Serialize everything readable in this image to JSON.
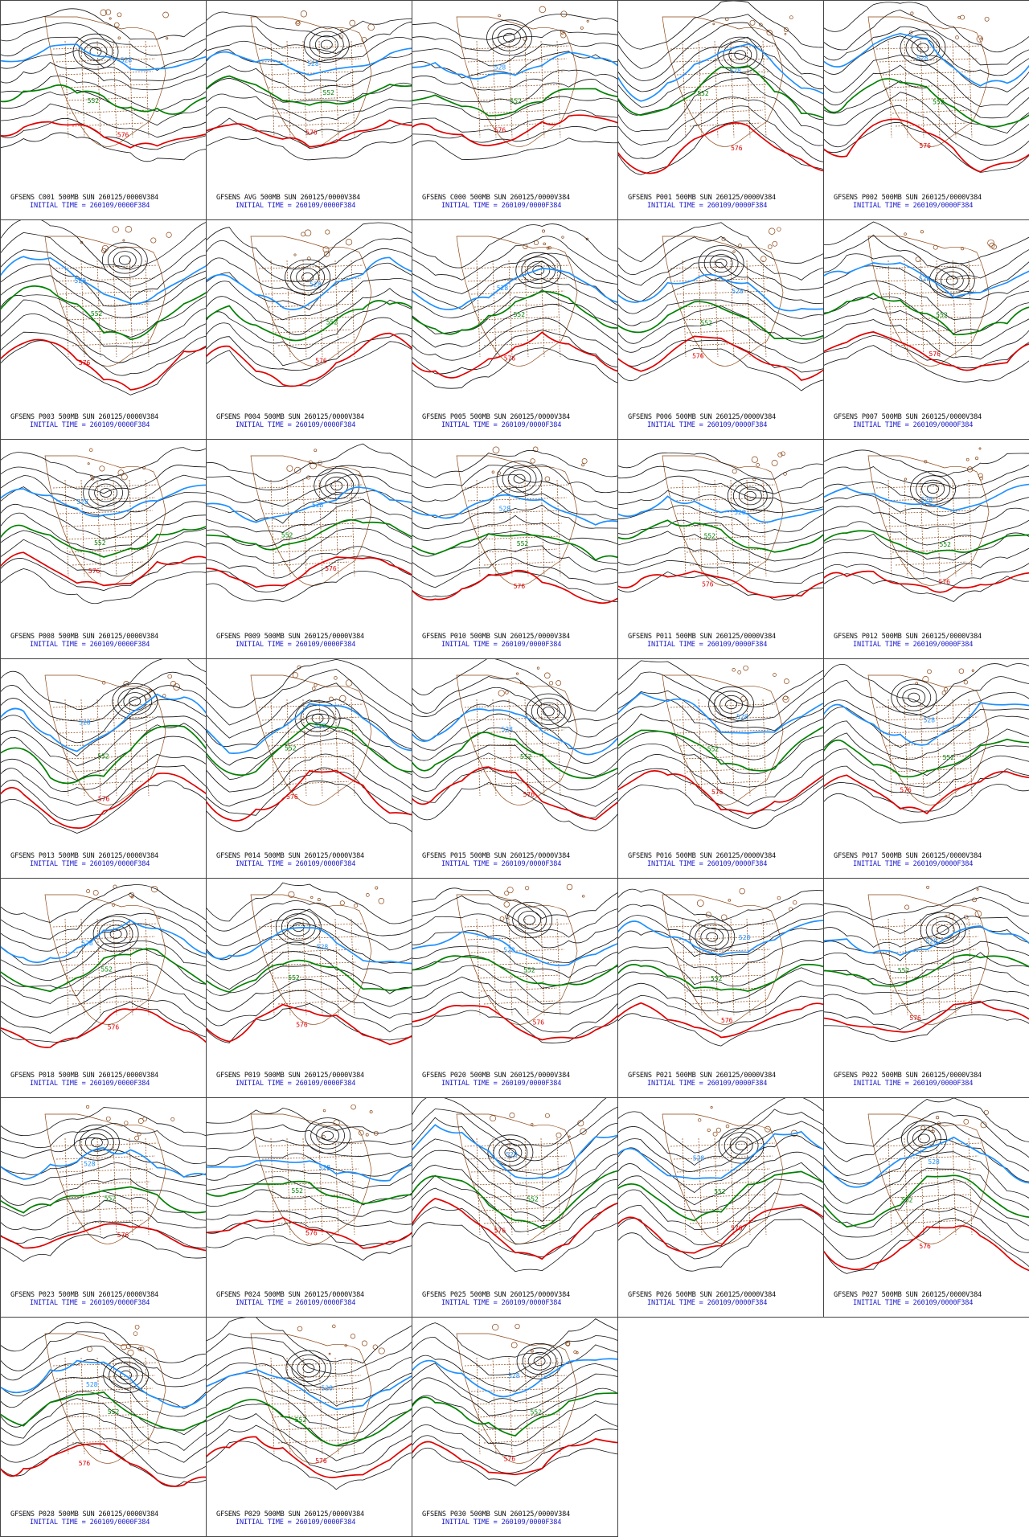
{
  "colors": {
    "contour": "#111111",
    "line_528": "#1e90ff",
    "line_552": "#008000",
    "line_576": "#e00000",
    "geography": "#8b4513",
    "caption": "#111111",
    "initial_time": "#1a1acc"
  },
  "contour_labels": {
    "line_528": "528",
    "line_552": "552",
    "line_576": "576"
  },
  "panels": [
    {
      "title": "GFSENS C001 500MB SUN 260125/0000V384",
      "initial": "INITIAL TIME = 260109/0000F384"
    },
    {
      "title": "GFSENS AVG 500MB SUN 260125/0000V384",
      "initial": "INITIAL TIME = 260109/0000F384"
    },
    {
      "title": "GFSENS C000 500MB SUN 260125/0000V384",
      "initial": "INITIAL TIME = 260109/0000F384"
    },
    {
      "title": "GFSENS P001 500MB SUN 260125/0000V384",
      "initial": "INITIAL TIME = 260109/0000F384"
    },
    {
      "title": "GFSENS P002 500MB SUN 260125/0000V384",
      "initial": "INITIAL TIME = 260109/0000F384"
    },
    {
      "title": "GFSENS P003 500MB SUN 260125/0000V384",
      "initial": "INITIAL TIME = 260109/0000F384"
    },
    {
      "title": "GFSENS P004 500MB SUN 260125/0000V384",
      "initial": "INITIAL TIME = 260109/0000F384"
    },
    {
      "title": "GFSENS P005 500MB SUN 260125/0000V384",
      "initial": "INITIAL TIME = 260109/0000F384"
    },
    {
      "title": "GFSENS P006 500MB SUN 260125/0000V384",
      "initial": "INITIAL TIME = 260109/0000F384"
    },
    {
      "title": "GFSENS P007 500MB SUN 260125/0000V384",
      "initial": "INITIAL TIME = 260109/0000F384"
    },
    {
      "title": "GFSENS P008 500MB SUN 260125/0000V384",
      "initial": "INITIAL TIME = 260109/0000F384"
    },
    {
      "title": "GFSENS P009 500MB SUN 260125/0000V384",
      "initial": "INITIAL TIME = 260109/0000F384"
    },
    {
      "title": "GFSENS P010 500MB SUN 260125/0000V384",
      "initial": "INITIAL TIME = 260109/0000F384"
    },
    {
      "title": "GFSENS P011 500MB SUN 260125/0000V384",
      "initial": "INITIAL TIME = 260109/0000F384"
    },
    {
      "title": "GFSENS P012 500MB SUN 260125/0000V384",
      "initial": "INITIAL TIME = 260109/0000F384"
    },
    {
      "title": "GFSENS P013 500MB SUN 260125/0000V384",
      "initial": "INITIAL TIME = 260109/0000F384"
    },
    {
      "title": "GFSENS P014 500MB SUN 260125/0000V384",
      "initial": "INITIAL TIME = 260109/0000F384"
    },
    {
      "title": "GFSENS P015 500MB SUN 260125/0000V384",
      "initial": "INITIAL TIME = 260109/0000F384"
    },
    {
      "title": "GFSENS P016 500MB SUN 260125/0000V384",
      "initial": "INITIAL TIME = 260109/0000F384"
    },
    {
      "title": "GFSENS P017 500MB SUN 260125/0000V384",
      "initial": "INITIAL TIME = 260109/0000F384"
    },
    {
      "title": "GFSENS P018 500MB SUN 260125/0000V384",
      "initial": "INITIAL TIME = 260109/0000F384"
    },
    {
      "title": "GFSENS P019 500MB SUN 260125/0000V384",
      "initial": "INITIAL TIME = 260109/0000F384"
    },
    {
      "title": "GFSENS P020 500MB SUN 260125/0000V384",
      "initial": "INITIAL TIME = 260109/0000F384"
    },
    {
      "title": "GFSENS P021 500MB SUN 260125/0000V384",
      "initial": "INITIAL TIME = 260109/0000F384"
    },
    {
      "title": "GFSENS P022 500MB SUN 260125/0000V384",
      "initial": "INITIAL TIME = 260109/0000F384"
    },
    {
      "title": "GFSENS P023 500MB SUN 260125/0000V384",
      "initial": "INITIAL TIME = 260109/0000F384"
    },
    {
      "title": "GFSENS P024 500MB SUN 260125/0000V384",
      "initial": "INITIAL TIME = 260109/0000F384"
    },
    {
      "title": "GFSENS P025 500MB SUN 260125/0000V384",
      "initial": "INITIAL TIME = 260109/0000F384"
    },
    {
      "title": "GFSENS P026 500MB SUN 260125/0000V384",
      "initial": "INITIAL TIME = 260109/0000F384"
    },
    {
      "title": "GFSENS P027 500MB SUN 260125/0000V384",
      "initial": "INITIAL TIME = 260109/0000F384"
    },
    {
      "title": "GFSENS P028 500MB SUN 260125/0000V384",
      "initial": "INITIAL TIME = 260109/0000F384"
    },
    {
      "title": "GFSENS P029 500MB SUN 260125/0000V384",
      "initial": "INITIAL TIME = 260109/0000F384"
    },
    {
      "title": "GFSENS P030 500MB SUN 260125/0000V384",
      "initial": "INITIAL TIME = 260109/0000F384"
    }
  ]
}
